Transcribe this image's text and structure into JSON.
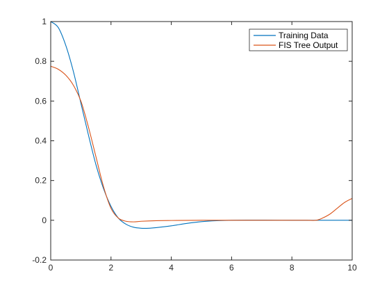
{
  "chart_data": {
    "type": "line",
    "title": "",
    "xlabel": "",
    "ylabel": "",
    "xlim": [
      0,
      10
    ],
    "ylim": [
      -0.2,
      1
    ],
    "x_ticks": [
      0,
      2,
      4,
      6,
      8,
      10
    ],
    "y_ticks": [
      -0.2,
      0,
      0.2,
      0.4,
      0.6,
      0.8,
      1
    ],
    "x_tick_labels": [
      "0",
      "2",
      "4",
      "6",
      "8",
      "10"
    ],
    "y_tick_labels": [
      "-0.2",
      "0",
      "0.2",
      "0.4",
      "0.6",
      "0.8",
      "1"
    ],
    "grid": false,
    "legend_position": "top-right",
    "series": [
      {
        "name": "Training Data",
        "color": "#0072BD",
        "x": [
          0,
          0.25,
          0.5,
          0.75,
          1,
          1.25,
          1.5,
          1.75,
          2,
          2.25,
          2.5,
          2.75,
          3,
          3.25,
          3.5,
          4,
          4.5,
          5,
          5.5,
          6,
          6.5,
          7,
          8,
          9,
          10
        ],
        "y": [
          1.0,
          0.97,
          0.88,
          0.75,
          0.59,
          0.43,
          0.28,
          0.16,
          0.07,
          0.01,
          -0.02,
          -0.035,
          -0.04,
          -0.04,
          -0.037,
          -0.028,
          -0.016,
          -0.007,
          -0.002,
          0.0,
          0.001,
          0.001,
          0.0,
          0.0,
          0.0
        ]
      },
      {
        "name": "FIS Tree Output",
        "color": "#D95319",
        "x": [
          0,
          0.25,
          0.5,
          0.75,
          1,
          1.25,
          1.5,
          1.75,
          2,
          2.25,
          2.5,
          2.75,
          3,
          3.5,
          4,
          5,
          6,
          7,
          8,
          8.5,
          8.8,
          9,
          9.25,
          9.5,
          9.75,
          10
        ],
        "y": [
          0.775,
          0.76,
          0.73,
          0.68,
          0.6,
          0.47,
          0.32,
          0.17,
          0.06,
          0.01,
          -0.005,
          -0.008,
          -0.005,
          -0.002,
          -0.001,
          0.0,
          0.0,
          0.0,
          0.0,
          0.0,
          0.0,
          0.01,
          0.03,
          0.06,
          0.09,
          0.11
        ]
      }
    ]
  }
}
